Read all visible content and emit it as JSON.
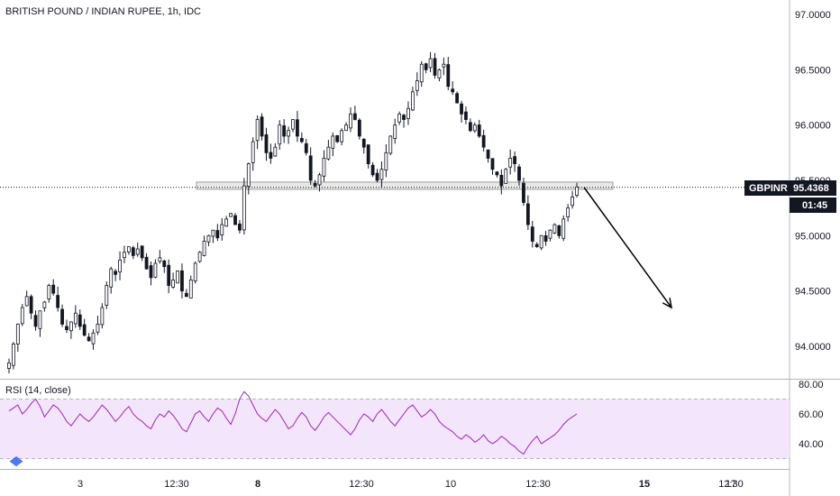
{
  "title": "BRITISH POUND / INDIAN RUPEE, 1h, IDC",
  "rsi_title": "RSI (14, close)",
  "price_tag": {
    "symbol": "GBPINR",
    "price": "95.4368",
    "countdown": "01:45"
  },
  "colors": {
    "candle": "#131722",
    "rsi_line": "#9c27b0",
    "rsi_band": "#f3e5fb",
    "zone_fill": "#e8e8e8",
    "arrow": "#000000",
    "tag_bg": "#131722"
  },
  "chart_data": {
    "type": "candlestick",
    "main": {
      "y_ticks": [
        "97.0000",
        "96.5000",
        "96.0000",
        "95.5000",
        "95.0000",
        "94.5000",
        "94.0000"
      ],
      "y_tick_values": [
        97.0,
        96.5,
        96.0,
        95.5,
        95.0,
        94.5,
        94.0
      ],
      "ylim": [
        93.85,
        97.05
      ],
      "series": [
        {
          "name": "GBPINR",
          "close": [
            93.85,
            94.02,
            94.2,
            94.35,
            94.45,
            94.3,
            94.18,
            94.32,
            94.4,
            94.55,
            94.48,
            94.35,
            94.2,
            94.15,
            94.22,
            94.3,
            94.18,
            94.1,
            94.05,
            94.12,
            94.2,
            94.35,
            94.55,
            94.7,
            94.65,
            94.78,
            94.85,
            94.9,
            94.82,
            94.88,
            94.8,
            94.7,
            94.62,
            94.75,
            94.8,
            94.72,
            94.55,
            94.6,
            94.68,
            94.5,
            94.45,
            94.6,
            94.75,
            94.85,
            94.95,
            95.0,
            95.05,
            94.98,
            95.1,
            95.15,
            95.2,
            95.1,
            95.05,
            95.45,
            95.65,
            95.85,
            96.05,
            95.9,
            95.75,
            95.7,
            95.8,
            96.0,
            95.9,
            95.95,
            96.05,
            95.9,
            95.85,
            95.75,
            95.5,
            95.45,
            95.55,
            95.7,
            95.8,
            95.9,
            95.85,
            95.95,
            96.0,
            96.1,
            96.05,
            95.9,
            95.8,
            95.65,
            95.55,
            95.5,
            95.6,
            95.75,
            95.9,
            96.0,
            96.1,
            96.05,
            96.15,
            96.3,
            96.4,
            96.55,
            96.5,
            96.6,
            96.45,
            96.5,
            96.55,
            96.35,
            96.3,
            96.2,
            96.1,
            96.05,
            95.95,
            96.0,
            95.9,
            95.8,
            95.7,
            95.6,
            95.55,
            95.45,
            95.6,
            95.7,
            95.65,
            95.5,
            95.3,
            95.1,
            94.95,
            94.9,
            95.0,
            94.95,
            95.05,
            95.1,
            95.0,
            95.15,
            95.25,
            95.35,
            95.44
          ]
        },
        {
          "name": "RSI",
          "values": [
            62,
            64,
            66,
            60,
            63,
            67,
            70,
            65,
            58,
            62,
            66,
            64,
            60,
            55,
            52,
            56,
            60,
            57,
            55,
            58,
            62,
            66,
            63,
            59,
            55,
            58,
            62,
            65,
            60,
            57,
            55,
            52,
            50,
            56,
            60,
            58,
            62,
            59,
            55,
            50,
            48,
            54,
            60,
            62,
            58,
            55,
            60,
            64,
            62,
            57,
            53,
            60,
            70,
            75,
            72,
            66,
            60,
            57,
            55,
            59,
            63,
            60,
            55,
            50,
            52,
            57,
            61,
            58,
            52,
            49,
            53,
            58,
            61,
            58,
            55,
            52,
            49,
            46,
            50,
            56,
            60,
            58,
            55,
            60,
            63,
            59,
            55,
            52,
            56,
            60,
            64,
            66,
            62,
            58,
            60,
            63,
            60,
            55,
            52,
            50,
            48,
            45,
            43,
            46,
            44,
            41,
            43,
            46,
            42,
            40,
            42,
            45,
            43,
            40,
            38,
            35,
            33,
            38,
            42,
            45,
            40,
            42,
            44,
            46,
            49,
            53,
            56,
            58,
            60
          ]
        }
      ]
    },
    "rsi": {
      "y_ticks": [
        "80.00",
        "60.00",
        "40.00"
      ],
      "y_tick_values": [
        80,
        60,
        40
      ],
      "band": [
        30,
        70
      ],
      "ylim": [
        29,
        83
      ]
    },
    "x_ticks": [
      {
        "label": "3",
        "bold": false
      },
      {
        "label": "12:30",
        "bold": false
      },
      {
        "label": "8",
        "bold": true
      },
      {
        "label": "12:30",
        "bold": false
      },
      {
        "label": "10",
        "bold": false
      },
      {
        "label": "12:30",
        "bold": false
      },
      {
        "label": "15",
        "bold": true
      },
      {
        "label": "17",
        "bold": false
      },
      {
        "label": "12:30",
        "bold": false
      }
    ],
    "resistance_zone": [
      95.4,
      95.46
    ],
    "projection_target": 94.35,
    "current_price": 95.4368,
    "grid": false,
    "legend": "none"
  }
}
